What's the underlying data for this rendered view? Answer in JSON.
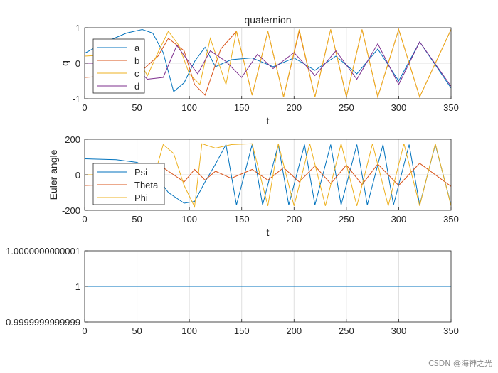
{
  "watermark": "CSDN @海神之光",
  "colors": {
    "axis": "#262626",
    "grid": "#dfdfdf",
    "series": [
      "#0072BD",
      "#D95319",
      "#EDB120",
      "#7E2F8E"
    ]
  },
  "chart_data": [
    {
      "type": "line",
      "title": "quaternion",
      "xlabel": "t",
      "ylabel": "q",
      "xlim": [
        0,
        350
      ],
      "ylim": [
        -1,
        1
      ],
      "xticks": [
        "0",
        "50",
        "100",
        "150",
        "200",
        "250",
        "300",
        "350"
      ],
      "yticks": [
        "1",
        "0",
        "-1"
      ],
      "legend_position": "top-left",
      "series": [
        {
          "name": "a",
          "values": [
            [
              0,
              0.28
            ],
            [
              20,
              0.6
            ],
            [
              40,
              0.85
            ],
            [
              55,
              0.95
            ],
            [
              65,
              0.85
            ],
            [
              75,
              0.3
            ],
            [
              85,
              -0.8
            ],
            [
              95,
              -0.55
            ],
            [
              105,
              0.05
            ],
            [
              115,
              0.45
            ],
            [
              125,
              -0.1
            ],
            [
              140,
              0.1
            ],
            [
              160,
              0.15
            ],
            [
              180,
              -0.1
            ],
            [
              200,
              0.15
            ],
            [
              220,
              -0.2
            ],
            [
              240,
              0.2
            ],
            [
              260,
              -0.3
            ],
            [
              280,
              0.4
            ],
            [
              300,
              -0.5
            ],
            [
              320,
              0.6
            ],
            [
              350,
              -0.7
            ]
          ]
        },
        {
          "name": "b",
          "values": [
            [
              0,
              -0.4
            ],
            [
              30,
              -0.35
            ],
            [
              55,
              -0.2
            ],
            [
              70,
              0.2
            ],
            [
              80,
              0.7
            ],
            [
              95,
              0.35
            ],
            [
              105,
              -0.6
            ],
            [
              115,
              -0.9
            ],
            [
              130,
              0.4
            ],
            [
              145,
              0.9
            ],
            [
              160,
              -0.9
            ],
            [
              175,
              0.9
            ],
            [
              190,
              -0.95
            ],
            [
              205,
              0.9
            ],
            [
              220,
              -0.95
            ],
            [
              235,
              0.95
            ],
            [
              250,
              -0.95
            ],
            [
              265,
              0.95
            ],
            [
              280,
              -0.95
            ],
            [
              300,
              0.95
            ],
            [
              320,
              -0.95
            ],
            [
              350,
              0.95
            ]
          ]
        },
        {
          "name": "c",
          "values": [
            [
              0,
              0.2
            ],
            [
              30,
              0.25
            ],
            [
              50,
              0.15
            ],
            [
              60,
              -0.35
            ],
            [
              70,
              0.3
            ],
            [
              80,
              0.9
            ],
            [
              90,
              0.5
            ],
            [
              100,
              -0.3
            ],
            [
              110,
              -0.6
            ],
            [
              120,
              0.7
            ],
            [
              135,
              -0.6
            ],
            [
              145,
              0.9
            ],
            [
              160,
              -0.9
            ],
            [
              175,
              0.9
            ],
            [
              190,
              -0.95
            ],
            [
              205,
              0.95
            ],
            [
              220,
              -0.95
            ],
            [
              235,
              0.95
            ],
            [
              250,
              -0.95
            ],
            [
              265,
              0.95
            ],
            [
              280,
              -0.95
            ],
            [
              300,
              0.95
            ],
            [
              320,
              -0.95
            ],
            [
              350,
              0.95
            ]
          ]
        },
        {
          "name": "d",
          "values": [
            [
              0,
              0.0
            ],
            [
              25,
              0.0
            ],
            [
              45,
              -0.05
            ],
            [
              60,
              -0.45
            ],
            [
              75,
              -0.4
            ],
            [
              88,
              0.5
            ],
            [
              98,
              0.1
            ],
            [
              108,
              -0.3
            ],
            [
              120,
              0.35
            ],
            [
              135,
              0.05
            ],
            [
              150,
              -0.4
            ],
            [
              165,
              0.25
            ],
            [
              180,
              -0.15
            ],
            [
              200,
              0.3
            ],
            [
              220,
              -0.35
            ],
            [
              240,
              0.35
            ],
            [
              260,
              -0.45
            ],
            [
              280,
              0.55
            ],
            [
              300,
              -0.6
            ],
            [
              320,
              0.6
            ],
            [
              350,
              -0.65
            ]
          ]
        }
      ]
    },
    {
      "type": "line",
      "xlabel": "t",
      "ylabel": "Euler angle",
      "xlim": [
        0,
        350
      ],
      "ylim": [
        -200,
        200
      ],
      "xticks": [
        "0",
        "50",
        "100",
        "150",
        "200",
        "250",
        "300",
        "350"
      ],
      "yticks": [
        "200",
        "0",
        "-200"
      ],
      "legend_position": "bottom-left",
      "series": [
        {
          "name": "Psi",
          "values": [
            [
              0,
              90
            ],
            [
              30,
              85
            ],
            [
              50,
              70
            ],
            [
              60,
              40
            ],
            [
              70,
              -20
            ],
            [
              80,
              -100
            ],
            [
              95,
              -160
            ],
            [
              105,
              -150
            ],
            [
              115,
              -40
            ],
            [
              125,
              60
            ],
            [
              135,
              170
            ],
            [
              145,
              -170
            ],
            [
              160,
              170
            ],
            [
              170,
              -170
            ],
            [
              185,
              170
            ],
            [
              195,
              -170
            ],
            [
              210,
              170
            ],
            [
              220,
              -170
            ],
            [
              235,
              170
            ],
            [
              245,
              -170
            ],
            [
              260,
              170
            ],
            [
              270,
              -170
            ],
            [
              285,
              170
            ],
            [
              295,
              -170
            ],
            [
              310,
              170
            ],
            [
              320,
              -170
            ],
            [
              335,
              170
            ],
            [
              350,
              -170
            ]
          ]
        },
        {
          "name": "Theta",
          "values": [
            [
              0,
              -60
            ],
            [
              30,
              -55
            ],
            [
              50,
              -30
            ],
            [
              65,
              10
            ],
            [
              75,
              40
            ],
            [
              85,
              0
            ],
            [
              95,
              -40
            ],
            [
              105,
              30
            ],
            [
              115,
              -30
            ],
            [
              125,
              20
            ],
            [
              140,
              -20
            ],
            [
              160,
              30
            ],
            [
              175,
              -30
            ],
            [
              190,
              40
            ],
            [
              205,
              -40
            ],
            [
              220,
              50
            ],
            [
              235,
              -50
            ],
            [
              250,
              55
            ],
            [
              265,
              -55
            ],
            [
              280,
              60
            ],
            [
              300,
              -60
            ],
            [
              320,
              65
            ],
            [
              350,
              -65
            ]
          ]
        },
        {
          "name": "Phi",
          "values": [
            [
              0,
              0
            ],
            [
              40,
              0
            ],
            [
              55,
              -10
            ],
            [
              65,
              -40
            ],
            [
              75,
              170
            ],
            [
              85,
              120
            ],
            [
              95,
              -60
            ],
            [
              105,
              -180
            ],
            [
              112,
              175
            ],
            [
              125,
              150
            ],
            [
              140,
              170
            ],
            [
              160,
              175
            ],
            [
              175,
              -175
            ],
            [
              185,
              175
            ],
            [
              200,
              -175
            ],
            [
              215,
              175
            ],
            [
              230,
              -175
            ],
            [
              245,
              175
            ],
            [
              260,
              -175
            ],
            [
              275,
              175
            ],
            [
              290,
              -175
            ],
            [
              305,
              175
            ],
            [
              320,
              -175
            ],
            [
              335,
              175
            ],
            [
              350,
              -175
            ]
          ]
        }
      ]
    },
    {
      "type": "line",
      "xlim": [
        0,
        350
      ],
      "ylim": [
        0.9999999999999,
        1.0000000000001
      ],
      "xticks": [
        "0",
        "50",
        "100",
        "150",
        "200",
        "250",
        "300",
        "350"
      ],
      "yticks": [
        "1.0000000000001",
        "1",
        "0.9999999999999"
      ],
      "series": [
        {
          "values": [
            [
              0,
              1
            ],
            [
              350,
              1
            ]
          ]
        }
      ]
    }
  ]
}
